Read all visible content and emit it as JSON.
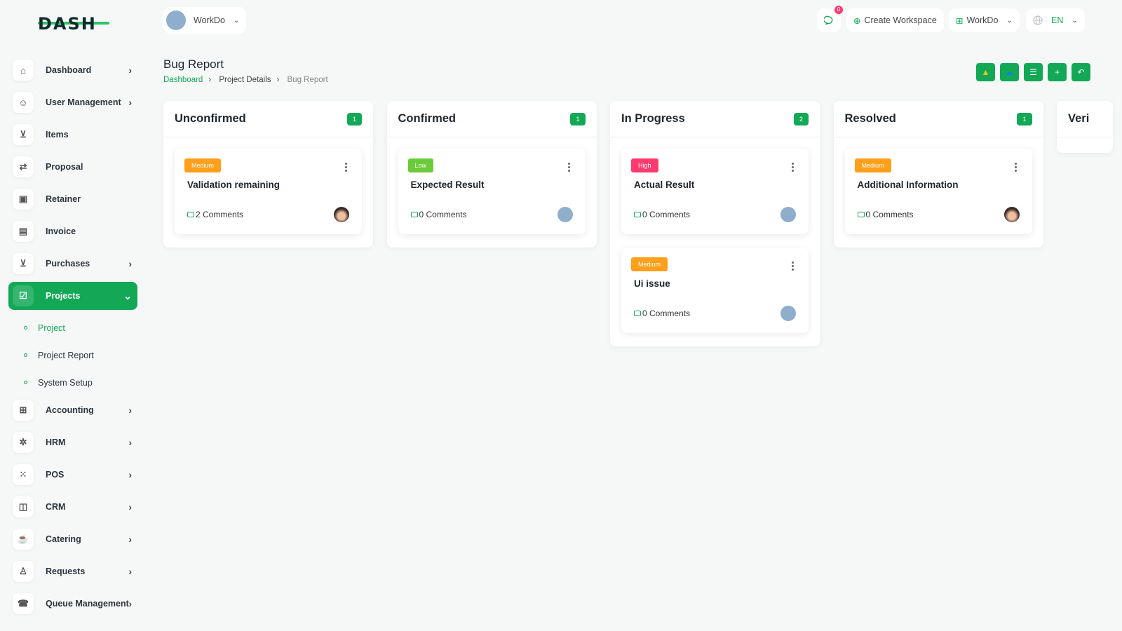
{
  "logo": "DASH",
  "workspace_switcher": "WorkDo",
  "topbar": {
    "notifications": "0",
    "create_workspace": "Create Workspace",
    "workspace": "WorkDo",
    "language": "EN"
  },
  "sidebar": {
    "items": [
      {
        "label": "Dashboard",
        "icon": "home-icon",
        "chev": true
      },
      {
        "label": "User Management",
        "icon": "users-icon",
        "chev": true
      },
      {
        "label": "Items",
        "icon": "cart-icon",
        "chev": false
      },
      {
        "label": "Proposal",
        "icon": "proposal-icon",
        "chev": false
      },
      {
        "label": "Retainer",
        "icon": "retainer-icon",
        "chev": false
      },
      {
        "label": "Invoice",
        "icon": "invoice-icon",
        "chev": false
      },
      {
        "label": "Purchases",
        "icon": "cart-icon",
        "chev": true
      },
      {
        "label": "Projects",
        "icon": "check-square-icon",
        "chev": true,
        "active": true
      },
      {
        "label": "Accounting",
        "icon": "grid-icon",
        "chev": true
      },
      {
        "label": "HRM",
        "icon": "hrm-icon",
        "chev": true
      },
      {
        "label": "POS",
        "icon": "dots-grid-icon",
        "chev": true
      },
      {
        "label": "CRM",
        "icon": "crm-icon",
        "chev": true
      },
      {
        "label": "Catering",
        "icon": "catering-icon",
        "chev": true
      },
      {
        "label": "Requests",
        "icon": "user-plus-icon",
        "chev": true
      },
      {
        "label": "Queue Management",
        "icon": "phone-icon",
        "chev": true
      }
    ],
    "subitems": [
      {
        "label": "Project",
        "active": true
      },
      {
        "label": "Project Report"
      },
      {
        "label": "System Setup"
      }
    ]
  },
  "page": {
    "title": "Bug Report",
    "breadcrumb": [
      "Dashboard",
      "Project Details",
      "Bug Report"
    ]
  },
  "actions": [
    "google-drive-icon",
    "onedrive-icon",
    "list-icon",
    "plus-icon",
    "back-icon"
  ],
  "colors": {
    "accent": "#13a856",
    "medium": "#ff9f1a",
    "low": "#6bcb3b",
    "high": "#ff3a6e"
  },
  "columns": [
    {
      "title": "Unconfirmed",
      "count": "1",
      "cards": [
        {
          "priority": "Medium",
          "title": "Validation remaining",
          "comments": "2 Comments",
          "avatar": "person"
        }
      ]
    },
    {
      "title": "Confirmed",
      "count": "1",
      "cards": [
        {
          "priority": "Low",
          "title": "Expected Result",
          "comments": "0 Comments",
          "avatar": "building"
        }
      ]
    },
    {
      "title": "In Progress",
      "count": "2",
      "cards": [
        {
          "priority": "High",
          "title": "Actual Result",
          "comments": "0 Comments",
          "avatar": "building"
        },
        {
          "priority": "Medium",
          "title": "Ui issue",
          "comments": "0 Comments",
          "avatar": "building"
        }
      ]
    },
    {
      "title": "Resolved",
      "count": "1",
      "cards": [
        {
          "priority": "Medium",
          "title": "Additional Information",
          "comments": "0 Comments",
          "avatar": "person"
        }
      ]
    },
    {
      "title": "Veri",
      "count": "",
      "cards": []
    }
  ]
}
